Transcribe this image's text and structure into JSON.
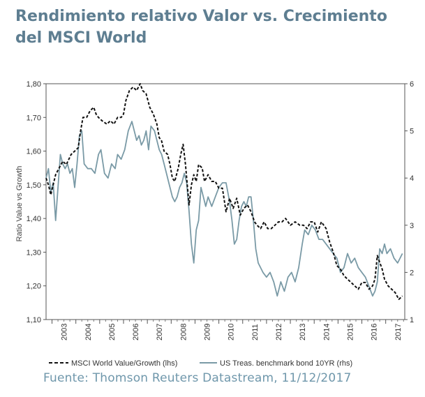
{
  "title": "Rendimiento relativo Valor vs. Crecimiento del MSCI World",
  "source": "Fuente: Thomson Reuters Datastream, 11/12/2017",
  "colors": {
    "title": "#5e7e91",
    "value_series": "#111111",
    "bond_series": "#7a9aa6",
    "axis": "#555555",
    "source": "#6f97ab"
  },
  "chart_data": {
    "type": "line",
    "title": "Rendimiento relativo Valor vs. Crecimiento del MSCI World",
    "ylabel": "Ratio Value vs Growth",
    "ylim": [
      1.1,
      1.8
    ],
    "y_ticks": [
      "1,10",
      "1,20",
      "1,30",
      "1,40",
      "1,50",
      "1,60",
      "1,70",
      "1,80"
    ],
    "y2lim": [
      1,
      6
    ],
    "y2_ticks": [
      "1",
      "2",
      "3",
      "4",
      "5",
      "6"
    ],
    "xlim": [
      2002.75,
      2017.8
    ],
    "x_ticks": [
      "2003",
      "2004",
      "2005",
      "2006",
      "2007",
      "2008",
      "2009",
      "2010",
      "2011",
      "2012",
      "2013",
      "2014",
      "2015",
      "2016",
      "2017"
    ],
    "legend": {
      "position": "bottom"
    },
    "series": [
      {
        "name": "MSCI World Value/Growth (lhs)",
        "axis": "left",
        "style": "dashed",
        "x": [
          2002.75,
          2002.85,
          2002.95,
          2003.05,
          2003.15,
          2003.3,
          2003.45,
          2003.6,
          2003.8,
          2003.95,
          2004.1,
          2004.2,
          2004.3,
          2004.45,
          2004.6,
          2004.75,
          2004.85,
          2004.95,
          2005.1,
          2005.3,
          2005.45,
          2005.6,
          2005.75,
          2005.9,
          2006.0,
          2006.1,
          2006.25,
          2006.4,
          2006.55,
          2006.7,
          2006.8,
          2006.95,
          2007.1,
          2007.25,
          2007.4,
          2007.5,
          2007.6,
          2007.7,
          2007.85,
          2007.95,
          2008.05,
          2008.15,
          2008.3,
          2008.4,
          2008.5,
          2008.6,
          2008.75,
          2008.85,
          2008.95,
          2009.05,
          2009.15,
          2009.3,
          2009.4,
          2009.55,
          2009.7,
          2009.85,
          2010.0,
          2010.15,
          2010.3,
          2010.45,
          2010.6,
          2010.75,
          2010.9,
          2011.05,
          2011.2,
          2011.35,
          2011.5,
          2011.6,
          2011.75,
          2011.9,
          2012.05,
          2012.2,
          2012.35,
          2012.5,
          2012.65,
          2012.8,
          2013.0,
          2013.2,
          2013.4,
          2013.55,
          2013.7,
          2013.85,
          2014.0,
          2014.15,
          2014.3,
          2014.5,
          2014.65,
          2014.8,
          2014.95,
          2015.1,
          2015.25,
          2015.4,
          2015.55,
          2015.7,
          2015.85,
          2016.0,
          2016.15,
          2016.3,
          2016.45,
          2016.55,
          2016.65,
          2016.75,
          2016.85,
          2016.95,
          2017.1,
          2017.25,
          2017.4,
          2017.55,
          2017.7
        ],
        "values": [
          1.52,
          1.5,
          1.47,
          1.5,
          1.53,
          1.55,
          1.57,
          1.56,
          1.59,
          1.6,
          1.61,
          1.66,
          1.7,
          1.7,
          1.72,
          1.73,
          1.71,
          1.7,
          1.69,
          1.68,
          1.69,
          1.68,
          1.7,
          1.7,
          1.71,
          1.75,
          1.78,
          1.79,
          1.78,
          1.8,
          1.78,
          1.77,
          1.73,
          1.71,
          1.68,
          1.64,
          1.63,
          1.6,
          1.59,
          1.56,
          1.52,
          1.51,
          1.55,
          1.59,
          1.62,
          1.56,
          1.44,
          1.5,
          1.53,
          1.51,
          1.56,
          1.55,
          1.51,
          1.53,
          1.51,
          1.51,
          1.49,
          1.49,
          1.42,
          1.46,
          1.43,
          1.46,
          1.41,
          1.43,
          1.44,
          1.42,
          1.39,
          1.38,
          1.37,
          1.39,
          1.37,
          1.37,
          1.38,
          1.39,
          1.39,
          1.4,
          1.38,
          1.39,
          1.38,
          1.38,
          1.37,
          1.39,
          1.39,
          1.36,
          1.39,
          1.37,
          1.33,
          1.3,
          1.26,
          1.25,
          1.23,
          1.22,
          1.21,
          1.2,
          1.19,
          1.21,
          1.21,
          1.19,
          1.2,
          1.22,
          1.29,
          1.27,
          1.25,
          1.22,
          1.2,
          1.19,
          1.18,
          1.16,
          1.17
        ]
      },
      {
        "name": "US Treas. benchmark bond 10YR (rhs)",
        "axis": "right",
        "style": "solid",
        "x": [
          2002.75,
          2002.85,
          2002.95,
          2003.05,
          2003.15,
          2003.25,
          2003.35,
          2003.45,
          2003.55,
          2003.65,
          2003.75,
          2003.85,
          2003.95,
          2004.05,
          2004.15,
          2004.25,
          2004.35,
          2004.5,
          2004.65,
          2004.8,
          2004.95,
          2005.05,
          2005.2,
          2005.35,
          2005.5,
          2005.65,
          2005.75,
          2005.9,
          2006.05,
          2006.2,
          2006.35,
          2006.45,
          2006.55,
          2006.65,
          2006.75,
          2006.85,
          2006.95,
          2007.05,
          2007.15,
          2007.3,
          2007.4,
          2007.5,
          2007.6,
          2007.7,
          2007.8,
          2007.9,
          2008.0,
          2008.05,
          2008.15,
          2008.25,
          2008.35,
          2008.45,
          2008.55,
          2008.65,
          2008.75,
          2008.85,
          2008.95,
          2009.05,
          2009.15,
          2009.25,
          2009.35,
          2009.45,
          2009.55,
          2009.7,
          2009.85,
          2010.0,
          2010.15,
          2010.3,
          2010.45,
          2010.55,
          2010.65,
          2010.75,
          2010.85,
          2010.95,
          2011.05,
          2011.15,
          2011.25,
          2011.35,
          2011.45,
          2011.55,
          2011.65,
          2011.75,
          2011.85,
          2012.0,
          2012.15,
          2012.3,
          2012.45,
          2012.6,
          2012.75,
          2012.9,
          2013.05,
          2013.2,
          2013.35,
          2013.5,
          2013.6,
          2013.75,
          2013.9,
          2014.05,
          2014.2,
          2014.35,
          2014.5,
          2014.65,
          2014.8,
          2014.95,
          2015.1,
          2015.25,
          2015.4,
          2015.55,
          2015.7,
          2015.85,
          2016.0,
          2016.15,
          2016.3,
          2016.45,
          2016.55,
          2016.65,
          2016.75,
          2016.85,
          2016.95,
          2017.05,
          2017.2,
          2017.35,
          2017.5,
          2017.6,
          2017.7
        ],
        "values": [
          4.0,
          4.2,
          3.7,
          3.9,
          3.1,
          3.8,
          4.5,
          4.3,
          4.2,
          4.3,
          4.1,
          4.2,
          3.8,
          4.3,
          4.9,
          5.0,
          4.3,
          4.2,
          4.2,
          4.1,
          4.5,
          4.6,
          4.1,
          4.0,
          4.3,
          4.2,
          4.5,
          4.4,
          4.6,
          5.0,
          5.2,
          5.0,
          4.8,
          4.9,
          4.7,
          4.8,
          5.0,
          4.6,
          5.1,
          5.0,
          4.8,
          4.6,
          4.5,
          4.3,
          4.1,
          3.9,
          3.7,
          3.6,
          3.5,
          3.6,
          3.8,
          3.9,
          4.1,
          3.9,
          3.3,
          2.6,
          2.2,
          2.9,
          3.1,
          3.8,
          3.6,
          3.4,
          3.6,
          3.4,
          3.6,
          3.8,
          3.9,
          3.9,
          3.5,
          3.1,
          2.6,
          2.7,
          3.1,
          3.4,
          3.5,
          3.4,
          3.6,
          3.6,
          3.1,
          2.5,
          2.2,
          2.1,
          2.0,
          1.9,
          2.0,
          1.8,
          1.5,
          1.8,
          1.6,
          1.9,
          2.0,
          1.8,
          2.1,
          2.6,
          2.9,
          2.8,
          3.0,
          2.9,
          2.7,
          2.7,
          2.6,
          2.5,
          2.4,
          2.3,
          2.0,
          2.1,
          2.4,
          2.2,
          2.3,
          2.1,
          2.0,
          1.9,
          1.7,
          1.5,
          1.6,
          1.8,
          2.5,
          2.4,
          2.6,
          2.4,
          2.5,
          2.3,
          2.2,
          2.3,
          2.4
        ]
      }
    ]
  }
}
